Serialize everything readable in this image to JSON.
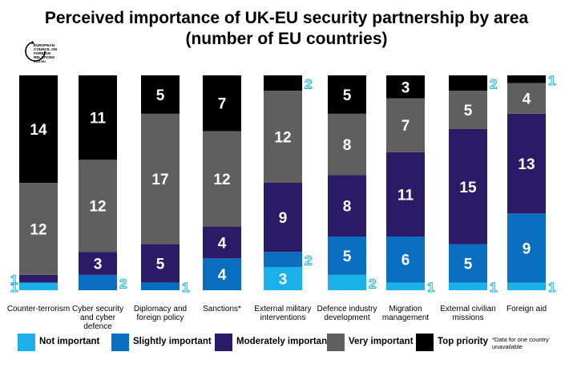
{
  "title_line1": "Perceived importance of UK-EU security partnership by area",
  "title_line2": "(number of EU countries)",
  "logo_text": "EUROPEAN COUNCIL ON FOREIGN RELATIONS ecfr.eu",
  "note": "*Data for one country unavailable",
  "colors": {
    "Not important": "#1ab0e8",
    "Slightly important": "#0a6fc0",
    "Moderately important": "#2b1b66",
    "Very important": "#5f5f5f",
    "Top priority": "#000000"
  },
  "chart_data": {
    "type": "bar",
    "stacked": true,
    "orientation": "vertical",
    "categories": [
      "Counter-terrorism",
      "Cyber security and cyber defence",
      "Diplomacy and foreign policy",
      "Sanctions*",
      "External military interventions",
      "Defence industry development",
      "Migration management",
      "External civilian missions",
      "Foreign aid"
    ],
    "series": [
      {
        "name": "Not important",
        "values": [
          1,
          0,
          0,
          0,
          3,
          2,
          1,
          1,
          1
        ]
      },
      {
        "name": "Slightly important",
        "values": [
          0,
          2,
          1,
          4,
          2,
          5,
          6,
          5,
          9
        ]
      },
      {
        "name": "Moderately important",
        "values": [
          1,
          3,
          5,
          4,
          9,
          8,
          11,
          15,
          13
        ]
      },
      {
        "name": "Very important",
        "values": [
          12,
          12,
          17,
          12,
          12,
          8,
          7,
          5,
          4
        ]
      },
      {
        "name": "Top priority",
        "values": [
          14,
          11,
          5,
          7,
          2,
          5,
          3,
          2,
          1
        ]
      }
    ],
    "legend_position": "bottom",
    "grid": false
  }
}
